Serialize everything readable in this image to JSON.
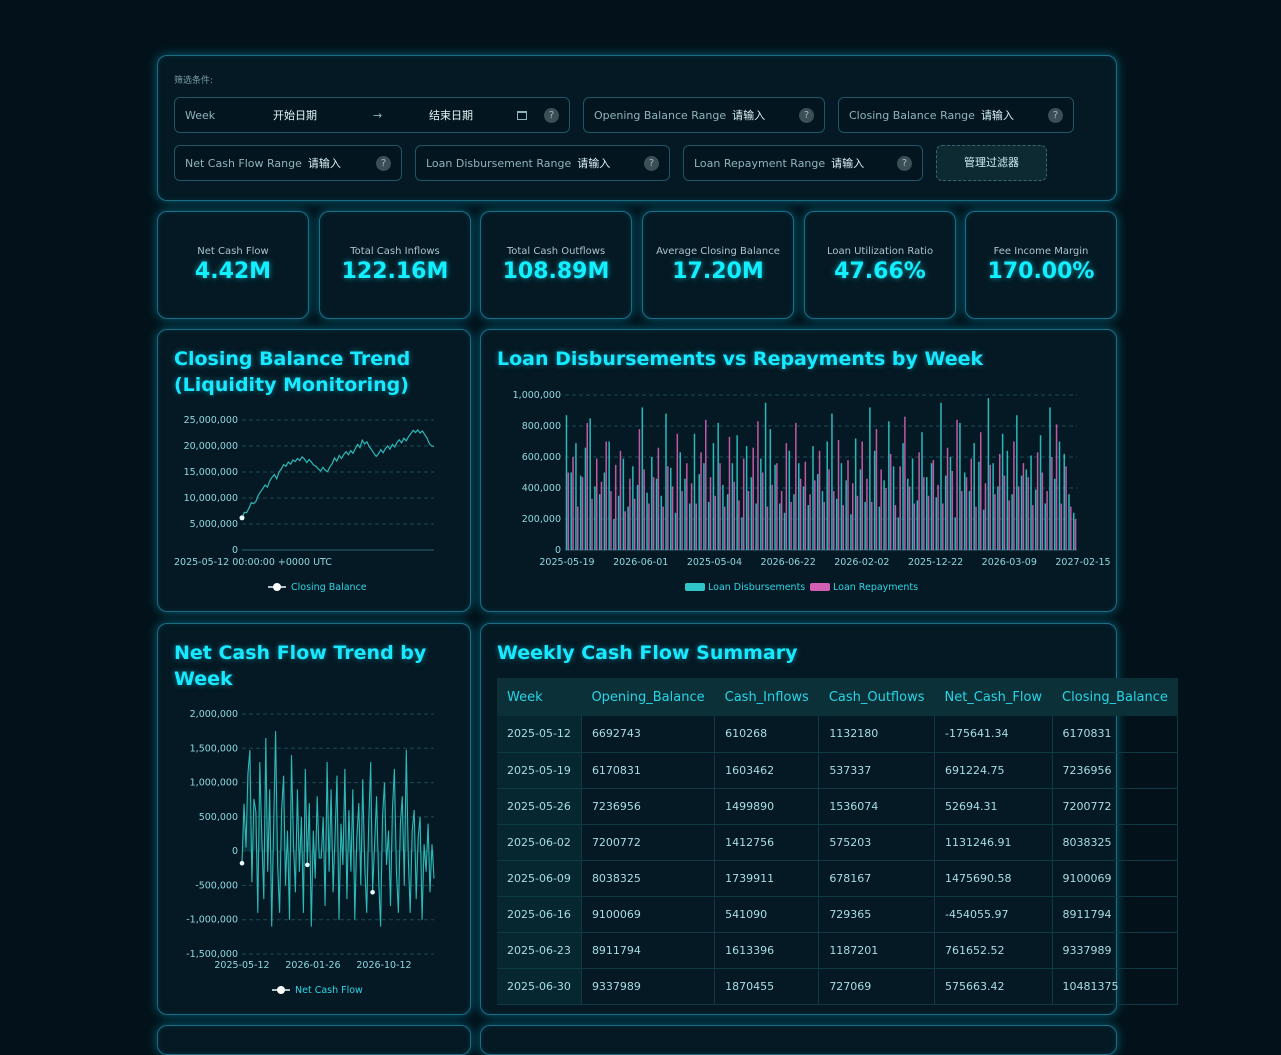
{
  "filters": {
    "label": "筛选条件:",
    "week": {
      "label": "Week",
      "start_placeholder": "开始日期",
      "end_placeholder": "结束日期",
      "arrow": "→"
    },
    "opening_balance": {
      "label": "Opening Balance Range",
      "placeholder": "请输入"
    },
    "closing_balance": {
      "label": "Closing Balance Range",
      "placeholder": "请输入"
    },
    "net_cash_flow": {
      "label": "Net Cash Flow Range",
      "placeholder": "请输入"
    },
    "loan_disbursement": {
      "label": "Loan Disbursement Range",
      "placeholder": "请输入"
    },
    "loan_repayment": {
      "label": "Loan Repayment Range",
      "placeholder": "请输入"
    },
    "help_icon": "?",
    "manage_button": "管理过滤器"
  },
  "kpis": [
    {
      "title": "Net Cash Flow",
      "value": "4.42M"
    },
    {
      "title": "Total Cash Inflows",
      "value": "122.16M"
    },
    {
      "title": "Total Cash Outflows",
      "value": "108.89M"
    },
    {
      "title": "Average Closing Balance",
      "value": "17.20M"
    },
    {
      "title": "Loan Utilization Ratio",
      "value": "47.66%"
    },
    {
      "title": "Fee Income Margin",
      "value": "170.00%"
    }
  ],
  "titles": {
    "closing_line1": "Closing Balance Trend",
    "closing_line2": "(Liquidity Monitoring)",
    "loans": "Loan Disbursements vs Repayments by Week",
    "net_line1": "Net Cash Flow Trend by",
    "net_line2": "Week",
    "summary": "Weekly Cash Flow Summary"
  },
  "colors": {
    "accent": "#19e9ff",
    "line": "#2fb8b8",
    "disb": "#2fc6c9",
    "repay": "#d25fb4"
  },
  "chart_data": [
    {
      "type": "line",
      "title": "Closing Balance Trend (Liquidity Monitoring)",
      "ylim": [
        0,
        25000000
      ],
      "yticks": [
        "25,000,000",
        "20,000,000",
        "15,000,000",
        "10,000,000",
        "5,000,000",
        "0"
      ],
      "xticks": [
        "2025-05-12 00:00:00 +0000 UTC"
      ],
      "series": [
        {
          "name": "Closing Balance",
          "values": [
            6170831,
            7236956,
            7200772,
            8038325,
            9100069,
            8911794,
            9337989,
            10481375,
            11200000,
            11800000,
            12500000,
            12100000,
            13300000,
            14000000,
            14500000,
            13700000,
            15000000,
            15600000,
            16400000,
            16100000,
            16900000,
            16500000,
            17300000,
            17000000,
            17600000,
            17200000,
            17900000,
            17500000,
            16800000,
            17400000,
            16900000,
            16300000,
            16100000,
            15600000,
            15200000,
            15900000,
            15300000,
            15100000,
            16000000,
            16600000,
            17700000,
            17100000,
            18200000,
            17600000,
            18400000,
            18900000,
            18300000,
            19100000,
            18600000,
            19500000,
            20300000,
            19700000,
            21100000,
            20400000,
            20800000,
            19900000,
            19300000,
            18600000,
            18000000,
            18500000,
            19300000,
            18700000,
            19500000,
            20000000,
            19400000,
            20300000,
            19800000,
            20700000,
            21200000,
            20600000,
            21500000,
            21000000,
            21800000,
            22400000,
            23000000,
            22600000,
            23100000,
            22500000,
            22900000,
            22200000,
            21500000,
            20400000,
            20000000,
            19900000
          ]
        }
      ]
    },
    {
      "type": "bar",
      "title": "Loan Disbursements vs Repayments by Week",
      "ylim": [
        0,
        1000000
      ],
      "yticks": [
        "1,000,000",
        "800,000",
        "600,000",
        "400,000",
        "200,000",
        "0"
      ],
      "xticks": [
        "2025-05-19",
        "2026-06-01",
        "2025-05-04",
        "2026-06-22",
        "2026-02-02",
        "2025-12-22",
        "2026-03-09",
        "2027-02-15"
      ],
      "series": [
        {
          "name": "Loan Disbursements",
          "values": [
            870000,
            500000,
            690000,
            480000,
            660000,
            850000,
            410000,
            360000,
            500000,
            700000,
            200000,
            350000,
            590000,
            280000,
            540000,
            420000,
            920000,
            370000,
            600000,
            460000,
            350000,
            880000,
            530000,
            240000,
            630000,
            460000,
            300000,
            750000,
            490000,
            560000,
            310000,
            690000,
            820000,
            420000,
            360000,
            560000,
            740000,
            210000,
            670000,
            470000,
            300000,
            590000,
            950000,
            780000,
            550000,
            300000,
            240000,
            640000,
            360000,
            560000,
            410000,
            290000,
            670000,
            490000,
            380000,
            700000,
            880000,
            330000,
            560000,
            450000,
            230000,
            720000,
            520000,
            310000,
            920000,
            640000,
            280000,
            450000,
            830000,
            540000,
            210000,
            690000,
            460000,
            590000,
            320000,
            760000,
            470000,
            560000,
            340000,
            950000,
            480000,
            600000,
            210000,
            820000,
            500000,
            380000,
            690000,
            570000,
            260000,
            980000,
            560000,
            410000,
            750000,
            640000,
            360000,
            870000,
            480000,
            520000,
            610000,
            390000,
            740000,
            300000,
            920000,
            460000,
            700000,
            620000,
            360000,
            240000
          ]
        },
        {
          "name": "Loan Repayments",
          "values": [
            500000,
            600000,
            280000,
            470000,
            820000,
            330000,
            590000,
            440000,
            700000,
            380000,
            550000,
            640000,
            250000,
            460000,
            330000,
            780000,
            520000,
            300000,
            470000,
            660000,
            280000,
            540000,
            410000,
            750000,
            380000,
            560000,
            430000,
            300000,
            630000,
            840000,
            470000,
            350000,
            560000,
            280000,
            730000,
            440000,
            320000,
            590000,
            380000,
            660000,
            830000,
            500000,
            280000,
            420000,
            560000,
            380000,
            690000,
            310000,
            820000,
            460000,
            570000,
            360000,
            450000,
            640000,
            310000,
            520000,
            380000,
            710000,
            290000,
            580000,
            430000,
            350000,
            700000,
            460000,
            310000,
            780000,
            520000,
            400000,
            620000,
            290000,
            540000,
            860000,
            410000,
            300000,
            630000,
            470000,
            350000,
            580000,
            420000,
            300000,
            660000,
            510000,
            840000,
            380000,
            470000,
            590000,
            280000,
            760000,
            430000,
            550000,
            360000,
            620000,
            480000,
            320000,
            700000,
            410000,
            560000,
            470000,
            290000,
            630000,
            500000,
            380000,
            600000,
            810000,
            300000,
            540000,
            280000,
            200000
          ]
        }
      ]
    },
    {
      "type": "line",
      "title": "Net Cash Flow Trend by Week",
      "ylim": [
        -1500000,
        2000000
      ],
      "yticks": [
        "2,000,000",
        "1,500,000",
        "1,000,000",
        "500,000",
        "0",
        "-500,000",
        "-1,000,000",
        "-1,500,000"
      ],
      "xticks": [
        "2025-05-12",
        "2026-01-26",
        "2026-10-12"
      ],
      "series": [
        {
          "name": "Net Cash Flow",
          "values": [
            -175641.34,
            691224.75,
            52694.31,
            1131246.91,
            1475690.58,
            -454055.97,
            761652.52,
            575663.42,
            -900000,
            1300000,
            200000,
            -700000,
            1650000,
            -300000,
            900000,
            -1100000,
            400000,
            1750000,
            -200000,
            -900000,
            600000,
            1100000,
            -500000,
            300000,
            -1000000,
            1400000,
            100000,
            -600000,
            900000,
            -300000,
            500000,
            -900000,
            1200000,
            -200000,
            700000,
            -1100000,
            300000,
            -400000,
            800000,
            -100000,
            -100000,
            500000,
            -800000,
            1300000,
            -300000,
            900000,
            -600000,
            200000,
            1100000,
            -1000000,
            400000,
            -200000,
            1200000,
            -700000,
            600000,
            -300000,
            900000,
            -1000000,
            200000,
            700000,
            -500000,
            1050000,
            -200000,
            -900000,
            400000,
            1300000,
            -600000,
            100000,
            800000,
            -400000,
            -1100000,
            500000,
            1000000,
            -200000,
            300000,
            -800000,
            600000,
            1200000,
            -300000,
            -900000,
            400000,
            800000,
            -500000,
            1480000,
            -100000,
            -900000,
            300000,
            600000,
            -700000,
            200000,
            500000,
            -1000000,
            100000,
            -300000,
            400000,
            -600000,
            100000,
            -400000
          ]
        }
      ]
    }
  ],
  "table": {
    "columns": [
      "Week",
      "Opening_Balance",
      "Cash_Inflows",
      "Cash_Outflows",
      "Net_Cash_Flow",
      "Closing_Balance"
    ],
    "rows": [
      [
        "2025-05-12",
        "6692743",
        "610268",
        "1132180",
        "-175641.34",
        "6170831"
      ],
      [
        "2025-05-19",
        "6170831",
        "1603462",
        "537337",
        "691224.75",
        "7236956"
      ],
      [
        "2025-05-26",
        "7236956",
        "1499890",
        "1536074",
        "52694.31",
        "7200772"
      ],
      [
        "2025-06-02",
        "7200772",
        "1412756",
        "575203",
        "1131246.91",
        "8038325"
      ],
      [
        "2025-06-09",
        "8038325",
        "1739911",
        "678167",
        "1475690.58",
        "9100069"
      ],
      [
        "2025-06-16",
        "9100069",
        "541090",
        "729365",
        "-454055.97",
        "8911794"
      ],
      [
        "2025-06-23",
        "8911794",
        "1613396",
        "1187201",
        "761652.52",
        "9337989"
      ],
      [
        "2025-06-30",
        "9337989",
        "1870455",
        "727069",
        "575663.42",
        "10481375"
      ]
    ]
  }
}
